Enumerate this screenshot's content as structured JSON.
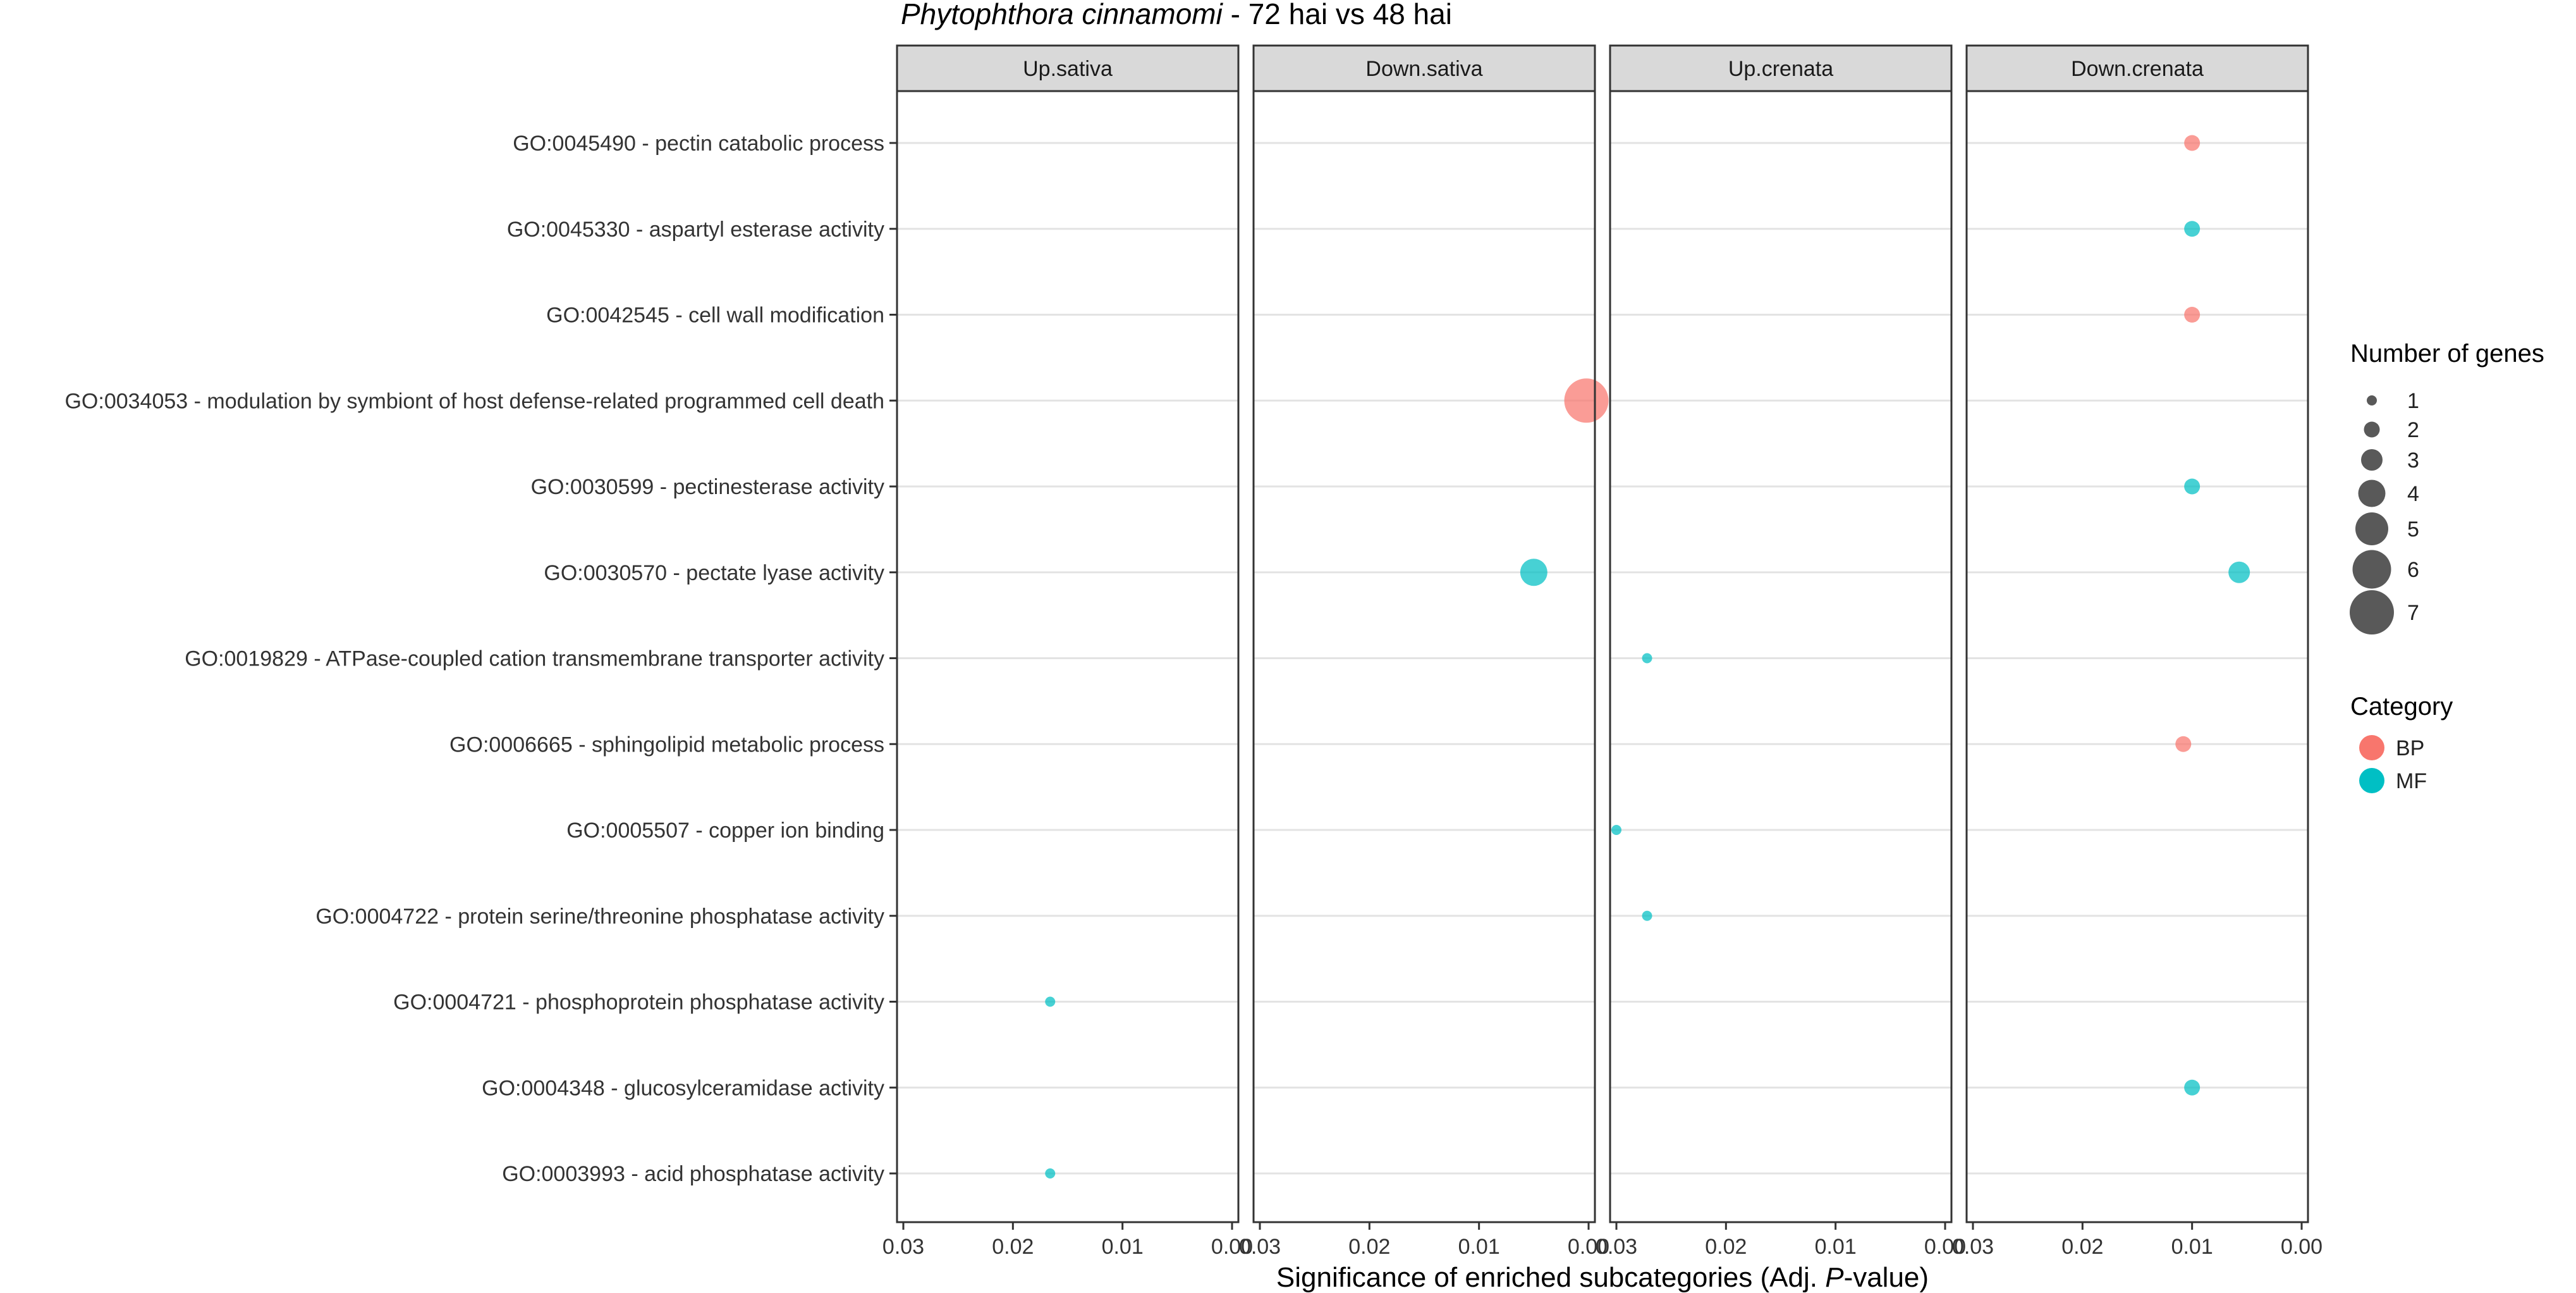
{
  "chart_data": {
    "type": "scatter",
    "title": {
      "italic": "Phytophthora cinnamomi",
      "rest": " - 72 hai vs 48 hai"
    },
    "xlabel": {
      "prefix": "Significance of enriched subcategories (Adj. ",
      "italic": "P",
      "suffix": "-value)"
    },
    "xlim": [
      0.03,
      0.0
    ],
    "x_ticks": [
      0.03,
      0.02,
      0.01,
      0.0
    ],
    "x_tick_labels": [
      "0.03",
      "0.02",
      "0.01",
      "0.00"
    ],
    "x_reversed": true,
    "grid": "horizontal",
    "panels": [
      "Up.sativa",
      "Down.sativa",
      "Up.crenata",
      "Down.crenata"
    ],
    "terms": [
      "GO:0045490 - pectin catabolic process",
      "GO:0045330 - aspartyl esterase activity",
      "GO:0042545 - cell wall modification",
      "GO:0034053 - modulation by symbiont of host defense-related programmed cell death",
      "GO:0030599 - pectinesterase activity",
      "GO:0030570 - pectate lyase activity",
      "GO:0019829 - ATPase-coupled cation transmembrane transporter activity",
      "GO:0006665 - sphingolipid metabolic process",
      "GO:0005507 - copper ion binding",
      "GO:0004722 - protein serine/threonine phosphatase activity",
      "GO:0004721 - phosphoprotein phosphatase activity",
      "GO:0004348 - glucosylceramidase activity",
      "GO:0003993 - acid phosphatase activity"
    ],
    "categories": [
      {
        "name": "BP",
        "color": "#F8766D"
      },
      {
        "name": "MF",
        "color": "#00BFC4"
      }
    ],
    "points": [
      {
        "panel": "Down.crenata",
        "term": "GO:0045490 - pectin catabolic process",
        "p": 0.01,
        "genes": 2,
        "category": "BP"
      },
      {
        "panel": "Down.crenata",
        "term": "GO:0045330 - aspartyl esterase activity",
        "p": 0.01,
        "genes": 2,
        "category": "MF"
      },
      {
        "panel": "Down.crenata",
        "term": "GO:0042545 - cell wall modification",
        "p": 0.01,
        "genes": 2,
        "category": "BP"
      },
      {
        "panel": "Down.sativa",
        "term": "GO:0034053 - modulation by symbiont of host defense-related programmed cell death",
        "p": 0.0002,
        "genes": 7,
        "category": "BP"
      },
      {
        "panel": "Down.crenata",
        "term": "GO:0030599 - pectinesterase activity",
        "p": 0.01,
        "genes": 2,
        "category": "MF"
      },
      {
        "panel": "Down.sativa",
        "term": "GO:0030570 - pectate lyase activity",
        "p": 0.005,
        "genes": 4,
        "category": "MF"
      },
      {
        "panel": "Down.crenata",
        "term": "GO:0030570 - pectate lyase activity",
        "p": 0.0057,
        "genes": 3,
        "category": "MF"
      },
      {
        "panel": "Up.crenata",
        "term": "GO:0019829 - ATPase-coupled cation transmembrane transporter activity",
        "p": 0.0272,
        "genes": 1,
        "category": "MF"
      },
      {
        "panel": "Down.crenata",
        "term": "GO:0006665 - sphingolipid metabolic process",
        "p": 0.0108,
        "genes": 2,
        "category": "BP"
      },
      {
        "panel": "Up.crenata",
        "term": "GO:0005507 - copper ion binding",
        "p": 0.03,
        "genes": 1,
        "category": "MF"
      },
      {
        "panel": "Up.crenata",
        "term": "GO:0004722 - protein serine/threonine phosphatase activity",
        "p": 0.0272,
        "genes": 1,
        "category": "MF"
      },
      {
        "panel": "Up.sativa",
        "term": "GO:0004721 - phosphoprotein phosphatase activity",
        "p": 0.0166,
        "genes": 1,
        "category": "MF"
      },
      {
        "panel": "Down.crenata",
        "term": "GO:0004348 - glucosylceramidase activity",
        "p": 0.01,
        "genes": 2,
        "category": "MF"
      },
      {
        "panel": "Up.sativa",
        "term": "GO:0003993 - acid phosphatase activity",
        "p": 0.0166,
        "genes": 1,
        "category": "MF"
      }
    ],
    "legend": {
      "size_title": "Number of genes",
      "size_values": [
        1,
        2,
        3,
        4,
        5,
        6,
        7
      ],
      "size_color": "#595959",
      "category_title": "Category",
      "placement": "right"
    }
  }
}
